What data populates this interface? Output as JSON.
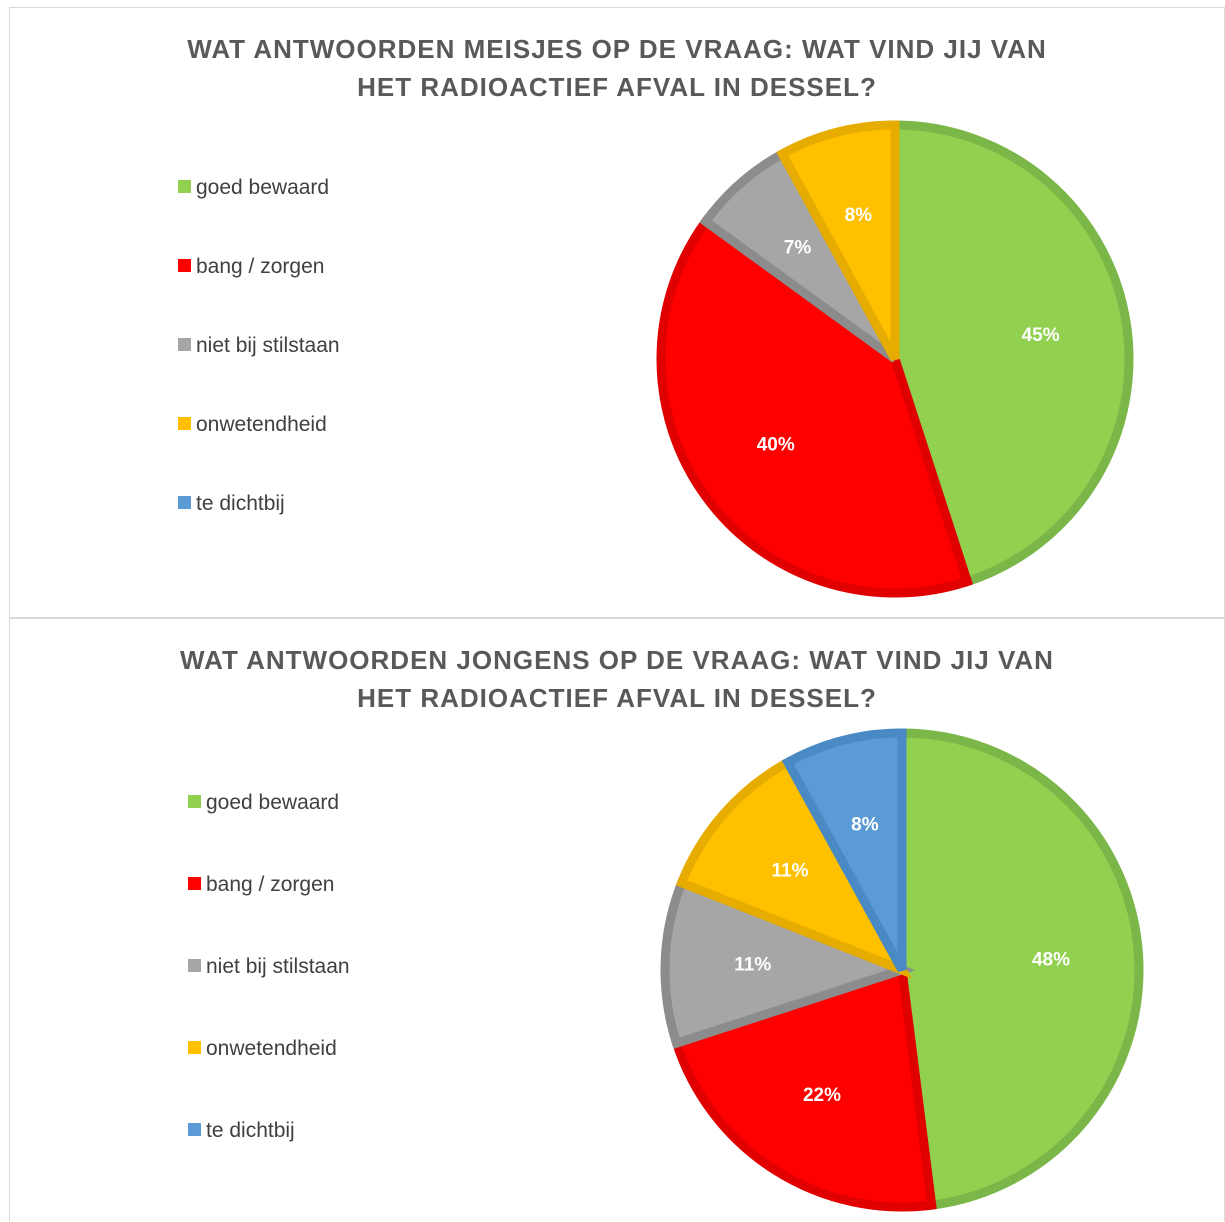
{
  "colors": {
    "goed bewaard": {
      "fill": "#92d050",
      "stroke": "#7ab648"
    },
    "bang / zorgen": {
      "fill": "#ff0000",
      "stroke": "#e00000"
    },
    "niet bij stilstaan": {
      "fill": "#a6a6a6",
      "stroke": "#8c8c8c"
    },
    "onwetendheid": {
      "fill": "#ffc000",
      "stroke": "#e6ac00"
    },
    "te dichtbij": {
      "fill": "#5b9bd5",
      "stroke": "#4a8ac4"
    }
  },
  "chart_data": [
    {
      "type": "pie",
      "title_line1": "WAT ANTWOORDEN MEISJES OP DE VRAAG: WAT VIND JIJ VAN",
      "title_line2": "HET RADIOACTIEF AFVAL IN DESSEL?",
      "legend": [
        "goed bewaard",
        "bang / zorgen",
        "niet bij stilstaan",
        "onwetendheid",
        "te dichtbij"
      ],
      "legend_position": "left",
      "slices": [
        {
          "category": "goed bewaard",
          "value": 45,
          "label": "45%"
        },
        {
          "category": "bang / zorgen",
          "value": 40,
          "label": "40%"
        },
        {
          "category": "niet bij stilstaan",
          "value": 7,
          "label": "7%"
        },
        {
          "category": "onwetendheid",
          "value": 8,
          "label": "8%"
        },
        {
          "category": "te dichtbij",
          "value": 0,
          "label": ""
        }
      ]
    },
    {
      "type": "pie",
      "title_line1": "WAT ANTWOORDEN JONGENS OP DE VRAAG: WAT VIND JIJ VAN",
      "title_line2": "HET RADIOACTIEF AFVAL IN DESSEL?",
      "legend": [
        "goed bewaard",
        "bang / zorgen",
        "niet bij stilstaan",
        "onwetendheid",
        "te dichtbij"
      ],
      "legend_position": "left",
      "slices": [
        {
          "category": "goed bewaard",
          "value": 48,
          "label": "48%"
        },
        {
          "category": "bang / zorgen",
          "value": 22,
          "label": "22%"
        },
        {
          "category": "niet bij stilstaan",
          "value": 11,
          "label": "11%"
        },
        {
          "category": "onwetendheid",
          "value": 11,
          "label": "11%"
        },
        {
          "category": "te dichtbij",
          "value": 8,
          "label": "8%"
        }
      ]
    }
  ]
}
